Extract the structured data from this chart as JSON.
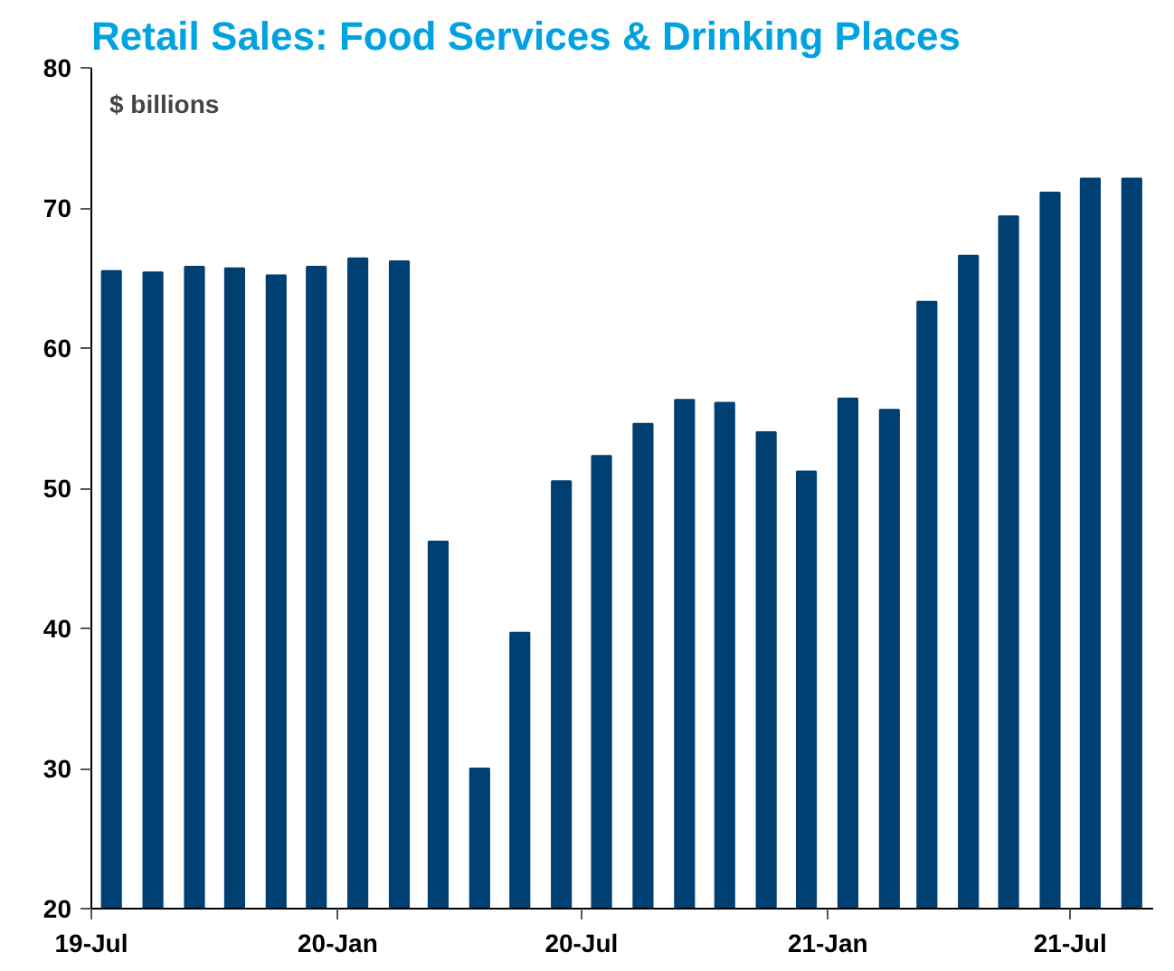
{
  "chart_data": {
    "type": "bar",
    "title": "Retail Sales: Food Services & Drinking Places",
    "ylabel": "$ billions",
    "x": [
      "2019-07-16",
      "2019-08-16",
      "2019-09-16",
      "2019-10-16",
      "2019-11-16",
      "2019-12-16",
      "2020-01-16",
      "2020-02-16",
      "2020-03-16",
      "2020-04-16",
      "2020-05-16",
      "2020-06-16",
      "2020-07-16",
      "2020-08-16",
      "2020-09-16",
      "2020-10-16",
      "2020-11-16",
      "2020-12-16",
      "2021-01-16",
      "2021-02-16",
      "2021-03-16",
      "2021-04-16",
      "2021-05-16",
      "2021-06-16",
      "2021-07-16",
      "2021-08-16"
    ],
    "values": [
      65.5,
      65.4,
      65.8,
      65.7,
      65.2,
      65.8,
      66.4,
      66.2,
      46.2,
      30.0,
      39.7,
      50.5,
      52.3,
      54.6,
      56.3,
      56.1,
      54.0,
      51.2,
      56.4,
      55.6,
      63.3,
      66.6,
      69.4,
      71.1,
      72.1,
      72.1
    ],
    "color": "#003f72",
    "xlim": [
      "2019-07",
      "2021-09"
    ],
    "xticks": [
      {
        "value": "2019-07",
        "label": "19-Jul"
      },
      {
        "value": "2020-01",
        "label": "20-Jan"
      },
      {
        "value": "2020-07",
        "label": "20-Jul"
      },
      {
        "value": "2021-01",
        "label": "21-Jan"
      },
      {
        "value": "2021-07",
        "label": "21-Jul"
      }
    ],
    "ylim": [
      20,
      80
    ],
    "yticks": [
      20,
      30,
      40,
      50,
      60,
      70,
      80
    ],
    "grid": false
  }
}
